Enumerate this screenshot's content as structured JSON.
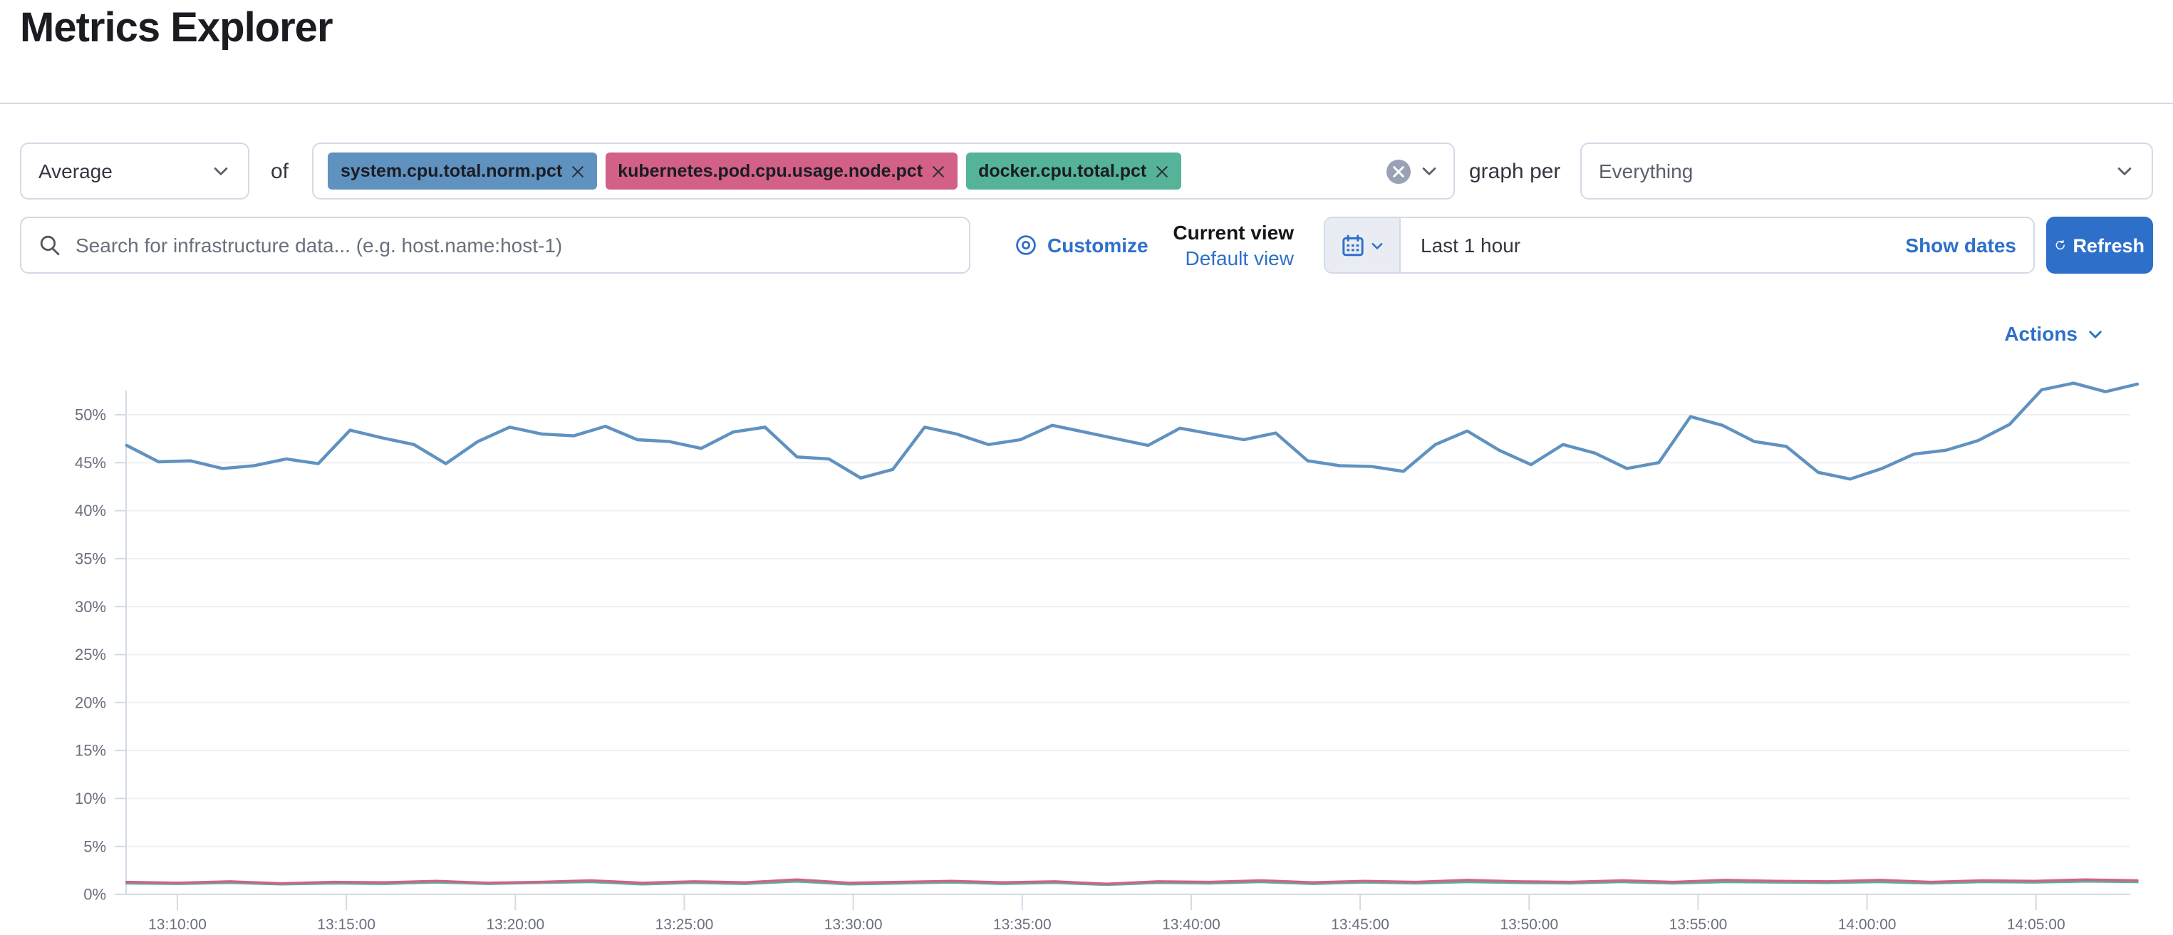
{
  "page": {
    "title": "Metrics Explorer"
  },
  "controls": {
    "aggregation_value": "Average",
    "of_label": "of",
    "metrics": [
      {
        "label": "system.cpu.total.norm.pct",
        "color": "#6092C0"
      },
      {
        "label": "kubernetes.pod.cpu.usage.node.pct",
        "color": "#D36086"
      },
      {
        "label": "docker.cpu.total.pct",
        "color": "#54B399"
      }
    ],
    "graph_per_label": "graph per",
    "group_by_value": "Everything"
  },
  "toolbar": {
    "search_placeholder": "Search for infrastructure data... (e.g. host.name:host-1)",
    "customize_label": "Customize",
    "current_view_label": "Current view",
    "default_view_label": "Default view",
    "time_range_label": "Last 1 hour",
    "show_dates_label": "Show dates",
    "refresh_label": "Refresh"
  },
  "chart_header": {
    "actions_label": "Actions"
  },
  "chart_data": {
    "type": "line",
    "title": "",
    "xlabel": "",
    "ylabel": "",
    "legend": "none",
    "grid": "horizontal",
    "y_tick_labels": [
      "0%",
      "5%",
      "10%",
      "15%",
      "20%",
      "25%",
      "30%",
      "35%",
      "40%",
      "45%",
      "50%"
    ],
    "y_ticks_pct": [
      0,
      5,
      10,
      15,
      20,
      25,
      30,
      35,
      40,
      45,
      50
    ],
    "ylim": [
      0,
      55
    ],
    "x_tick_labels": [
      "13:10:00",
      "13:15:00",
      "13:20:00",
      "13:25:00",
      "13:30:00",
      "13:35:00",
      "13:40:00",
      "13:45:00",
      "13:50:00",
      "13:55:00",
      "14:00:00",
      "14:05:00"
    ],
    "x_tick_minutes": [
      0,
      5,
      10,
      15,
      20,
      25,
      30,
      35,
      40,
      45,
      50,
      55
    ],
    "x_range_minutes": [
      -1.5,
      58
    ],
    "series": [
      {
        "name": "docker.cpu.total.pct",
        "color": "#54B399",
        "unit": "percent",
        "note": "mostly hidden beneath kubernetes series at ~1%",
        "x_start_minute": -1.5,
        "x_end_minute": 58,
        "values": [
          1.15,
          1.1,
          1.2,
          1.05,
          1.15,
          1.1,
          1.25,
          1.1,
          1.2,
          1.3,
          1.05,
          1.2,
          1.1,
          1.35,
          1.05,
          1.15,
          1.25,
          1.1,
          1.2,
          1.0,
          1.2,
          1.15,
          1.3,
          1.1,
          1.25,
          1.15,
          1.3,
          1.2,
          1.15,
          1.3,
          1.15,
          1.3,
          1.25,
          1.2,
          1.3,
          1.15,
          1.3,
          1.25,
          1.35,
          1.3
        ]
      },
      {
        "name": "kubernetes.pod.cpu.usage.node.pct",
        "color": "#D36086",
        "unit": "percent",
        "x_start_minute": -1.5,
        "x_end_minute": 58,
        "values": [
          1.3,
          1.2,
          1.35,
          1.15,
          1.3,
          1.25,
          1.4,
          1.2,
          1.3,
          1.45,
          1.2,
          1.35,
          1.25,
          1.55,
          1.2,
          1.3,
          1.4,
          1.25,
          1.35,
          1.1,
          1.35,
          1.3,
          1.45,
          1.25,
          1.4,
          1.3,
          1.5,
          1.35,
          1.3,
          1.45,
          1.3,
          1.5,
          1.4,
          1.35,
          1.5,
          1.3,
          1.45,
          1.4,
          1.55,
          1.45
        ]
      },
      {
        "name": "system.cpu.total.norm.pct",
        "color": "#6092C0",
        "unit": "percent",
        "x_start_minute": -1.5,
        "x_end_minute": 58,
        "values": [
          46.8,
          45.1,
          45.2,
          44.4,
          44.7,
          45.4,
          44.9,
          48.4,
          47.6,
          46.9,
          44.9,
          47.2,
          48.7,
          48.0,
          47.8,
          48.8,
          47.4,
          47.2,
          46.5,
          48.2,
          48.7,
          45.6,
          45.4,
          43.4,
          44.3,
          48.7,
          48.0,
          46.9,
          47.4,
          48.9,
          48.2,
          47.5,
          46.8,
          48.6,
          48.0,
          47.4,
          48.1,
          45.2,
          44.7,
          44.6,
          44.1,
          46.9,
          48.3,
          46.3,
          44.8,
          46.9,
          46.0,
          44.4,
          45.0,
          49.8,
          48.9,
          47.2,
          46.7,
          44.0,
          43.3,
          44.4,
          45.9,
          46.3,
          47.3,
          49.0,
          52.6,
          53.3,
          52.4,
          53.2
        ]
      }
    ]
  },
  "colors": {
    "accent_blue": "#2e70c9",
    "border": "#d3dae6",
    "text": "#343741",
    "muted_text": "#69707d",
    "axis_text": "#696f7d",
    "grid_line": "#eef0f4",
    "datepicker_segment_bg": "#e9edf3",
    "clear_button_bg": "#98a2b3",
    "series_blue": "#6092C0",
    "series_pink": "#D36086",
    "series_green": "#54B399"
  }
}
